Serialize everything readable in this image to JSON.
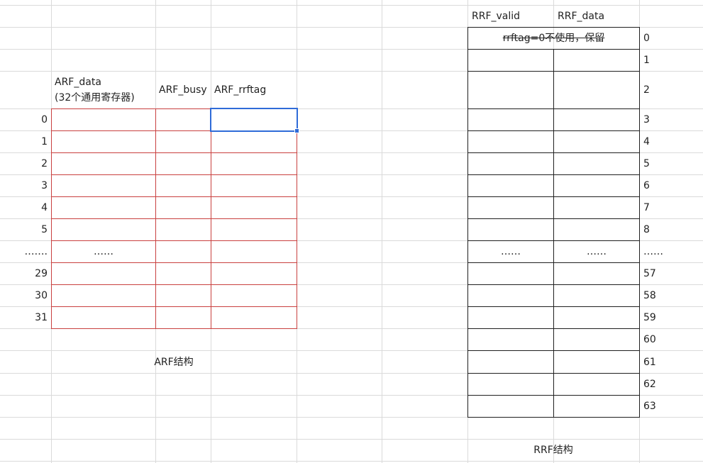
{
  "arf": {
    "headers": {
      "data_line1": "ARF_data",
      "data_line2": "(32个通用寄存器)",
      "busy": "ARF_busy",
      "rrftag": "ARF_rrftag"
    },
    "row_indices": [
      "0",
      "1",
      "2",
      "3",
      "4",
      "5",
      "…….",
      "29",
      "30",
      "31"
    ],
    "ellipsis_cell": "……",
    "caption": "ARF结构"
  },
  "rrf": {
    "headers": {
      "valid": "RRF_valid",
      "data": "RRF_data"
    },
    "reserved_note": "rrftag=0不使用，保留",
    "row_indices": [
      "0",
      "1",
      "2",
      "3",
      "4",
      "5",
      "6",
      "7",
      "8",
      "……",
      "57",
      "58",
      "59",
      "60",
      "61",
      "62",
      "63"
    ],
    "ellipsis_valid": "……",
    "ellipsis_data": "……",
    "caption": "RRF结构"
  },
  "colors": {
    "gridline": "#dadada",
    "arf_border": "#c9403f",
    "rrf_border": "#1f1f1f",
    "selection": "#2f6bd8"
  }
}
